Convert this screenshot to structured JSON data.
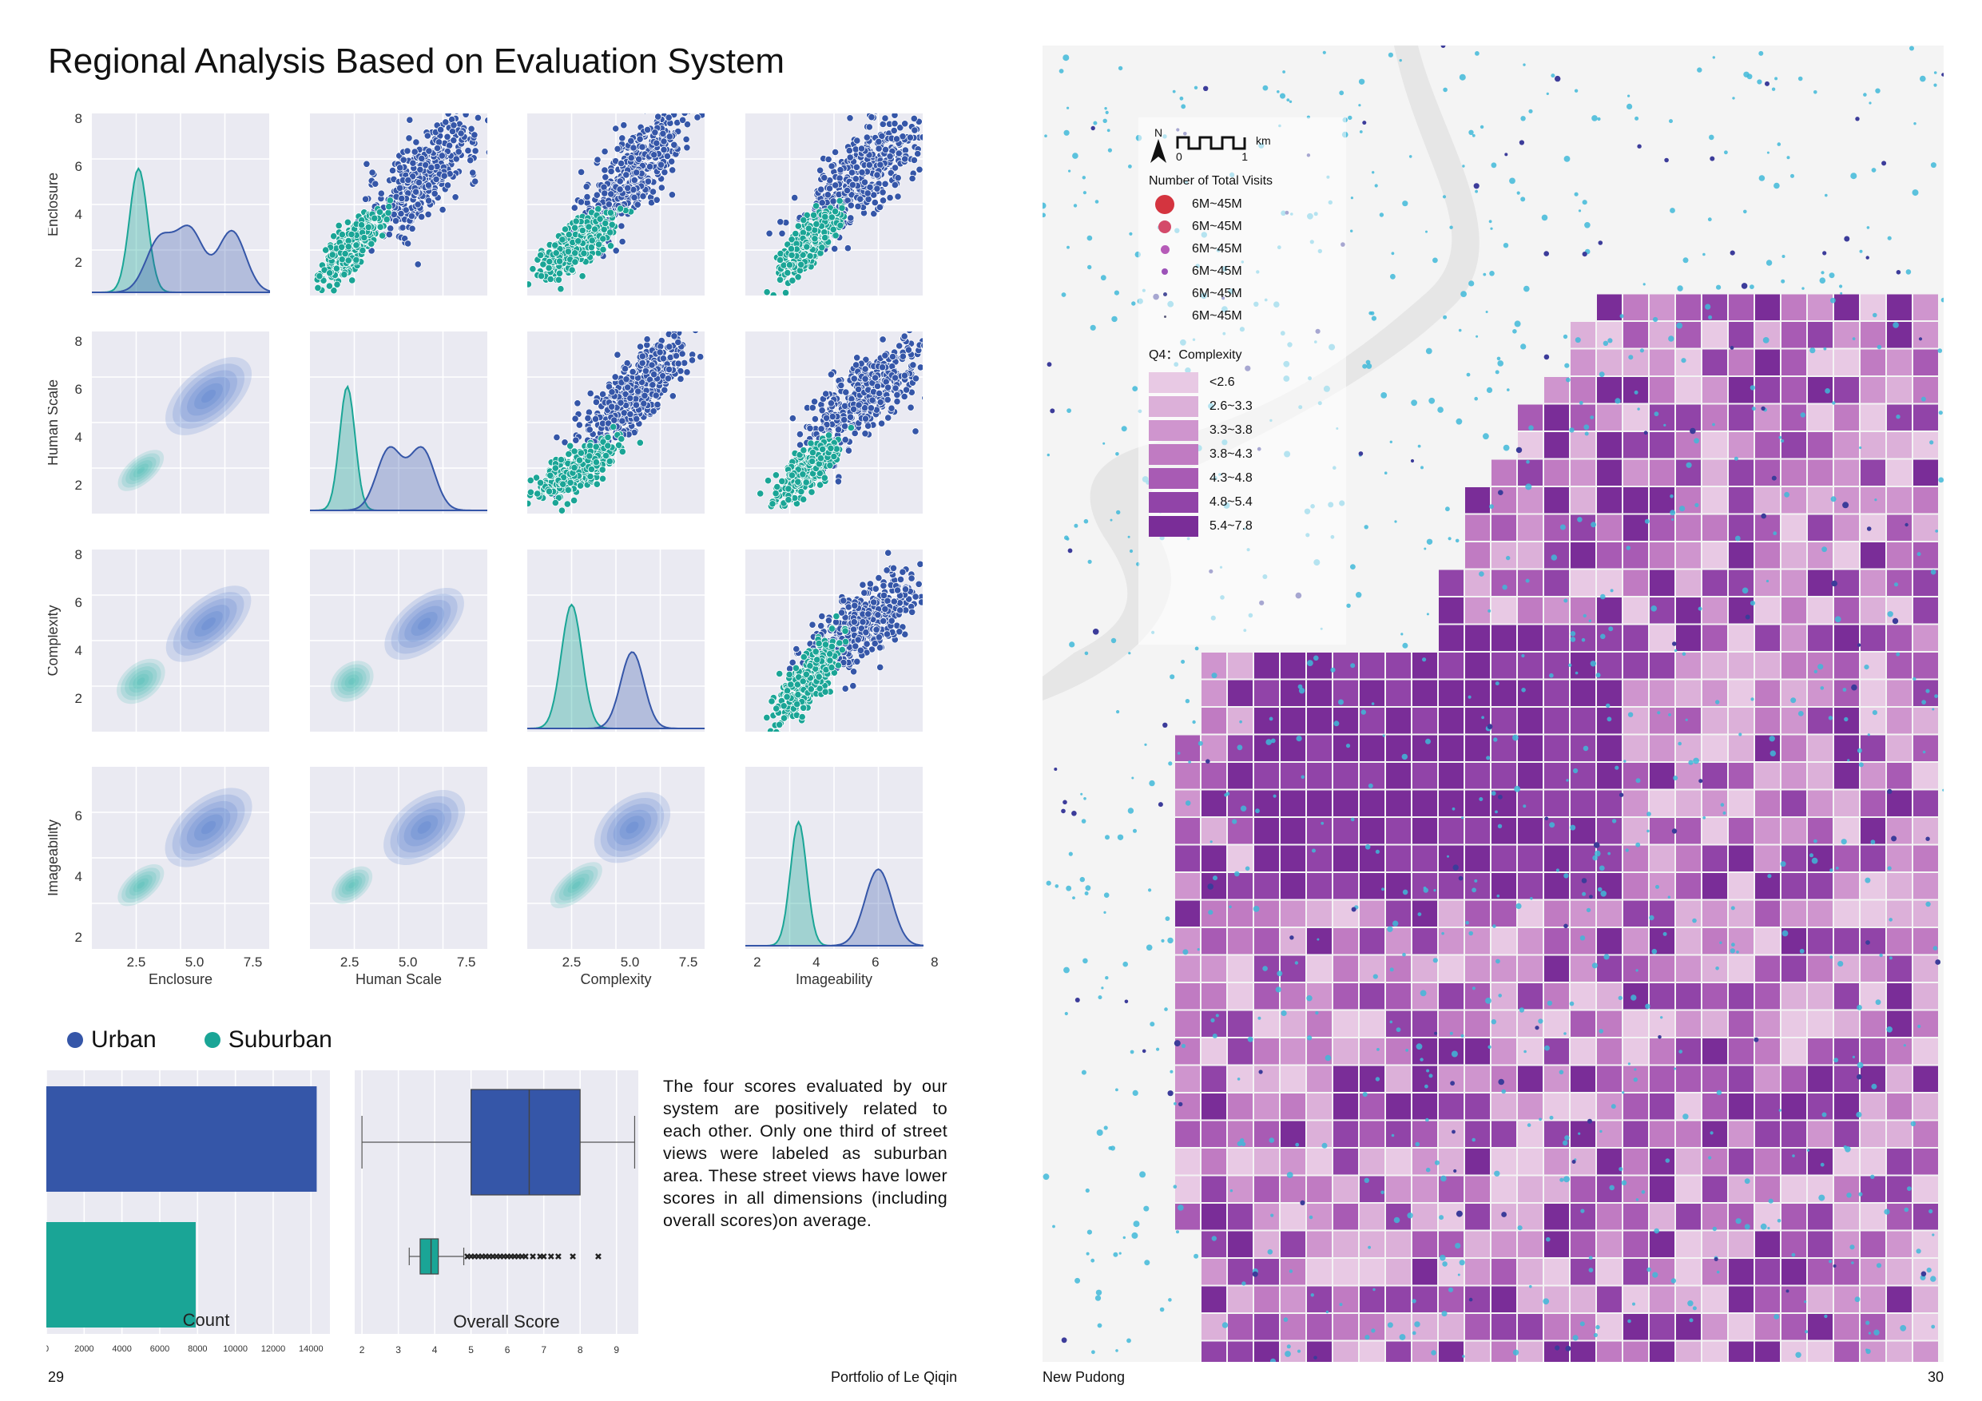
{
  "page": {
    "title": "Regional Analysis Based on Evaluation System",
    "footer_left_page": "29",
    "footer_author": "Portfolio of Le Qiqin",
    "footer_map": "New Pudong",
    "footer_right_page": "30"
  },
  "colors": {
    "urban": "#3556a8",
    "suburban": "#1aa596",
    "panel_bg": "#eaeaf2"
  },
  "legend": {
    "urban": "Urban",
    "suburban": "Suburban"
  },
  "caption": "The four scores evaluated by our system are positively related to each other. Only one third of street views were labeled as suburban area. These street views have lower scores in all dimensions (including overall scores)on average.",
  "chart_data": [
    {
      "type": "scatter",
      "title": "",
      "variables": [
        "Enclosure",
        "Human Scale",
        "Complexity",
        "Imageability"
      ],
      "x_tick_labels": [
        [
          "2.5",
          "5.0",
          "7.5"
        ],
        [
          "2.5",
          "5.0",
          "7.5"
        ],
        [
          "2.5",
          "5.0",
          "7.5"
        ],
        [
          "2",
          "4",
          "6",
          "8"
        ]
      ],
      "y_tick_labels": [
        [
          "2",
          "4",
          "6",
          "8"
        ],
        [
          "2",
          "4",
          "6",
          "8"
        ],
        [
          "2",
          "4",
          "6",
          "8"
        ],
        [
          "2",
          "4",
          "6"
        ]
      ],
      "ranges": [
        [
          0.6,
          8.2
        ],
        [
          0.8,
          8.4
        ],
        [
          0.6,
          8.2
        ],
        [
          1.6,
          7.6
        ]
      ],
      "series": [
        {
          "name": "Urban",
          "means": [
            5.6,
            5.7,
            5.1,
            5.6
          ],
          "sds": [
            1.3,
            1.2,
            1.1,
            1.0
          ],
          "kde_peaks": [
            [
              3.5,
              4.8,
              6.6
            ],
            [
              4.2,
              5.6
            ],
            [
              5.1
            ],
            [
              6.1
            ]
          ]
        },
        {
          "name": "Suburban",
          "means": [
            2.7,
            2.6,
            2.7,
            3.7
          ],
          "sds": [
            0.7,
            0.6,
            0.8,
            0.5
          ],
          "kde_peaks": [
            [
              2.6
            ],
            [
              2.4
            ],
            [
              2.5
            ],
            [
              3.4
            ]
          ]
        }
      ],
      "note_lower": "kde",
      "note_upper": "scatter"
    },
    {
      "type": "bar",
      "orientation": "horizontal",
      "categories": [
        "Urban",
        "Suburban"
      ],
      "values": [
        14300,
        7900
      ],
      "xlabel": "Count",
      "xlim": [
        0,
        15000
      ],
      "x_ticks": [
        "0",
        "2000",
        "4000",
        "6000",
        "8000",
        "10000",
        "12000",
        "14000"
      ]
    },
    {
      "type": "box",
      "categories": [
        "Urban",
        "Suburban"
      ],
      "xlabel": "Overall Score",
      "xlim": [
        1.8,
        9.6
      ],
      "x_ticks": [
        "2",
        "3",
        "4",
        "5",
        "6",
        "7",
        "8",
        "9"
      ],
      "boxes": [
        {
          "name": "Urban",
          "whisker_low": 2.0,
          "q1": 5.0,
          "median": 6.6,
          "q3": 8.0,
          "whisker_high": 9.5
        },
        {
          "name": "Suburban",
          "whisker_low": 3.3,
          "q1": 3.6,
          "median": 3.9,
          "q3": 4.1,
          "whisker_high": 4.8,
          "outliers": [
            4.9,
            5.0,
            5.1,
            5.2,
            5.3,
            5.4,
            5.5,
            5.6,
            5.7,
            5.8,
            5.9,
            6.0,
            6.1,
            6.2,
            6.3,
            6.4,
            6.5,
            6.7,
            6.9,
            7.0,
            7.2,
            7.4,
            7.8,
            8.5
          ]
        }
      ]
    }
  ],
  "map": {
    "north_label": "N",
    "scale_unit": "km",
    "scale_ticks": [
      "0",
      "1"
    ],
    "visits_title": "Number of Total Visits",
    "visits_legend": [
      "6M~45M",
      "6M~45M",
      "6M~45M",
      "6M~45M",
      "6M~45M",
      "6M~45M"
    ],
    "complexity_title": "Q4：Complexity",
    "complexity_legend": [
      "<2.6",
      "2.6~3.3",
      "3.3~3.8",
      "3.8~4.3",
      "4.3~4.8",
      "4.8~5.4",
      "5.4~7.8"
    ],
    "complexity_colors": [
      "#e8c9e4",
      "#dcb0d9",
      "#cf95ce",
      "#c07bc2",
      "#a85bb4",
      "#9144a8",
      "#7a2d98"
    ],
    "visit_colors": [
      "#d4343f",
      "#d44a6a",
      "#b65bb8",
      "#9c52b8",
      "#4b4f9a",
      "#5a5a7a"
    ],
    "river_color": "#e6e6e6",
    "poi_color": "#3fb9d8"
  }
}
